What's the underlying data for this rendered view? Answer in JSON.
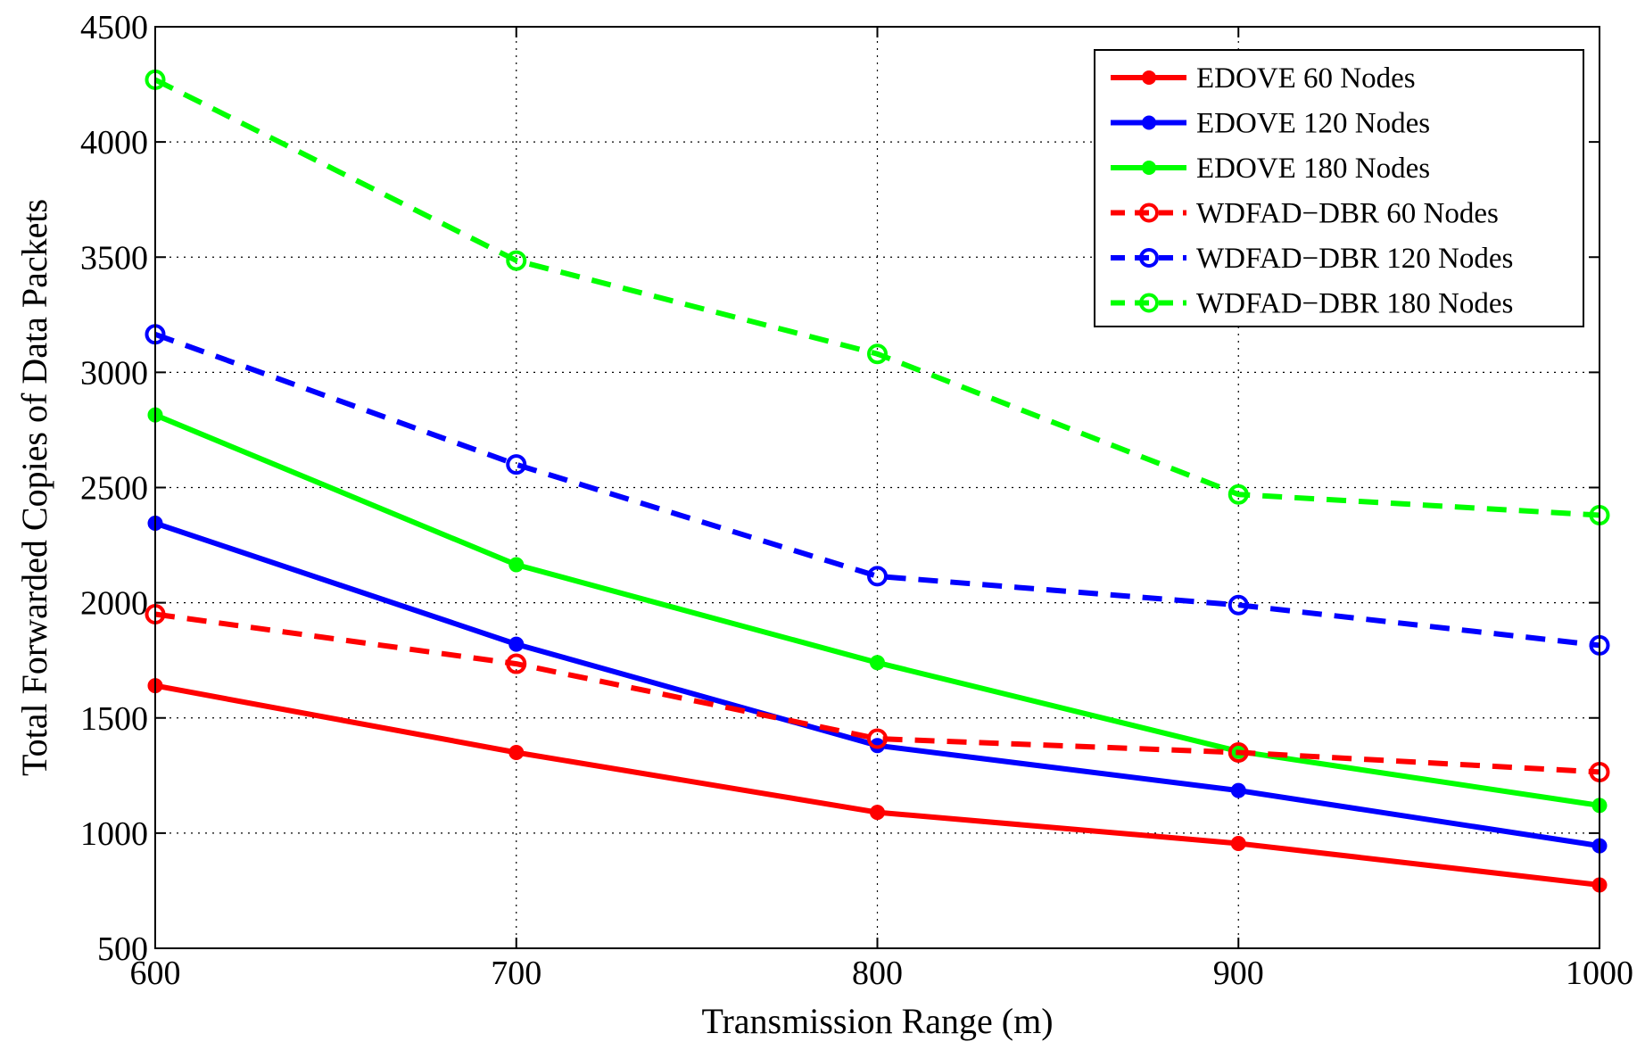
{
  "chart_data": {
    "type": "line",
    "title": "",
    "xlabel": "Transmission Range (m)",
    "ylabel": "Total Forwarded Copies of Data Packets",
    "x": [
      600,
      700,
      800,
      900,
      1000
    ],
    "xlim": [
      600,
      1000
    ],
    "ylim": [
      500,
      4500
    ],
    "xticks": [
      "600",
      "700",
      "800",
      "900",
      "1000"
    ],
    "yticks": [
      "500",
      "1000",
      "1500",
      "2000",
      "2500",
      "3000",
      "3500",
      "4000",
      "4500"
    ],
    "grid": true,
    "legend_position": "top-right",
    "series": [
      {
        "name": "EDOVE 60 Nodes",
        "color": "#ff0000",
        "style": "solid",
        "marker": "filled-circle",
        "values": [
          1640,
          1350,
          1090,
          955,
          775
        ]
      },
      {
        "name": "EDOVE 120 Nodes",
        "color": "#0000ff",
        "style": "solid",
        "marker": "filled-circle",
        "values": [
          2345,
          1820,
          1380,
          1185,
          945
        ]
      },
      {
        "name": "EDOVE 180 Nodes",
        "color": "#00ff00",
        "style": "solid",
        "marker": "filled-circle",
        "values": [
          2815,
          2165,
          1740,
          1355,
          1120
        ]
      },
      {
        "name": "WDFAD−DBR 60 Nodes",
        "color": "#ff0000",
        "style": "dashed",
        "marker": "open-circle",
        "values": [
          1950,
          1735,
          1410,
          1350,
          1265
        ]
      },
      {
        "name": "WDFAD−DBR 120 Nodes",
        "color": "#0000ff",
        "style": "dashed",
        "marker": "open-circle",
        "values": [
          3165,
          2600,
          2115,
          1990,
          1815
        ]
      },
      {
        "name": "WDFAD−DBR 180 Nodes",
        "color": "#00ff00",
        "style": "dashed",
        "marker": "open-circle",
        "values": [
          4270,
          3485,
          3080,
          2470,
          2380
        ]
      }
    ]
  }
}
